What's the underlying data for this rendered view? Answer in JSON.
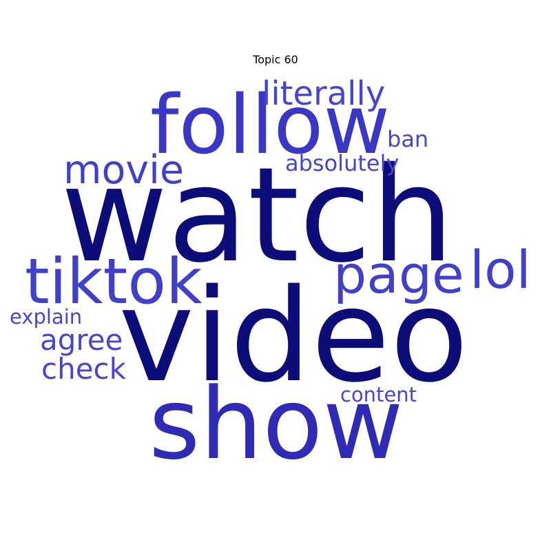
{
  "chart_data": {
    "type": "wordcloud",
    "title": "Topic 60",
    "words": [
      {
        "text": "watch",
        "weight": 1.0,
        "color": "#0d0d7a"
      },
      {
        "text": "video",
        "weight": 0.98,
        "color": "#0d0d7a"
      },
      {
        "text": "follow",
        "weight": 0.62,
        "color": "#3a37c4"
      },
      {
        "text": "show",
        "weight": 0.75,
        "color": "#2f2bb4"
      },
      {
        "text": "tiktok",
        "weight": 0.48,
        "color": "#4140c8"
      },
      {
        "text": "page",
        "weight": 0.4,
        "color": "#4140c8"
      },
      {
        "text": "lol",
        "weight": 0.4,
        "color": "#4140c8"
      },
      {
        "text": "movie",
        "weight": 0.3,
        "color": "#4140c8"
      },
      {
        "text": "literally",
        "weight": 0.25,
        "color": "#4645cc"
      },
      {
        "text": "agree",
        "weight": 0.22,
        "color": "#4645cc"
      },
      {
        "text": "check",
        "weight": 0.22,
        "color": "#4645cc"
      },
      {
        "text": "absolutely",
        "weight": 0.17,
        "color": "#4645cc"
      },
      {
        "text": "ban",
        "weight": 0.17,
        "color": "#4645cc"
      },
      {
        "text": "explain",
        "weight": 0.15,
        "color": "#4645cc"
      },
      {
        "text": "content",
        "weight": 0.15,
        "color": "#4645cc"
      }
    ]
  }
}
